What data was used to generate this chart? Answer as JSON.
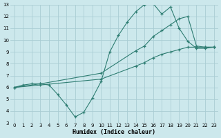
{
  "xlabel": "Humidex (Indice chaleur)",
  "bg_color": "#cce8ec",
  "grid_color": "#aacdd4",
  "line_color": "#2e7d72",
  "xlim": [
    -0.5,
    23.5
  ],
  "ylim": [
    3,
    13
  ],
  "xticks": [
    0,
    1,
    2,
    3,
    4,
    5,
    6,
    7,
    8,
    9,
    10,
    11,
    12,
    13,
    14,
    15,
    16,
    17,
    18,
    19,
    20,
    21,
    22,
    23
  ],
  "yticks": [
    3,
    4,
    5,
    6,
    7,
    8,
    9,
    10,
    11,
    12,
    13
  ],
  "line1_x": [
    0,
    1,
    2,
    3,
    4,
    5,
    6,
    7,
    8,
    9,
    10,
    11,
    12,
    13,
    14,
    15,
    16,
    17,
    18,
    19,
    20,
    21,
    22,
    23
  ],
  "line1_y": [
    6.0,
    6.2,
    6.3,
    6.3,
    6.2,
    5.4,
    4.5,
    3.5,
    3.9,
    5.1,
    6.5,
    9.0,
    10.4,
    11.5,
    12.4,
    13.0,
    13.1,
    12.2,
    12.8,
    11.0,
    9.9,
    9.3,
    9.3,
    9.4
  ],
  "line2_x": [
    0,
    3,
    10,
    14,
    15,
    16,
    17,
    18,
    19,
    20,
    21,
    22,
    23
  ],
  "line2_y": [
    6.0,
    6.3,
    7.2,
    9.1,
    9.5,
    10.3,
    10.8,
    11.3,
    11.8,
    12.0,
    9.5,
    9.4,
    9.4
  ],
  "line3_x": [
    0,
    3,
    10,
    14,
    15,
    16,
    17,
    18,
    19,
    20,
    21,
    22,
    23
  ],
  "line3_y": [
    6.0,
    6.2,
    6.7,
    7.8,
    8.1,
    8.5,
    8.8,
    9.0,
    9.2,
    9.4,
    9.4,
    9.4,
    9.4
  ]
}
